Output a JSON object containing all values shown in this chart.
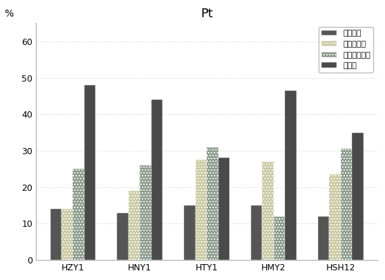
{
  "title": "Pt",
  "ylabel": "%",
  "categories": [
    "HZY1",
    "HNY1",
    "HTY1",
    "HMY2",
    "HSH12"
  ],
  "series": {
    "可交换相": [
      14,
      13,
      15,
      15,
      12
    ],
    "有机结合相": [
      14,
      19,
      27.5,
      27,
      23.5
    ],
    "硫化物结合相": [
      25,
      26,
      31,
      12,
      30.5
    ],
    "残渣相": [
      48,
      44,
      28,
      46.5,
      35
    ]
  },
  "colors": {
    "可交换相": "#555555",
    "有机结合相": "#c8c8a0",
    "硫化物结合相": "#8a9a8a",
    "残渣相": "#4a4a4a"
  },
  "hatches": {
    "可交换相": "",
    "有机结合相": "....",
    "硫化物结合相": "....",
    "残渣相": ""
  },
  "ylim": [
    0,
    65
  ],
  "yticks": [
    0,
    10,
    20,
    30,
    40,
    50,
    60
  ],
  "legend_order": [
    "可交换相",
    "有机结合相",
    "硫化物结合相",
    "残渣相"
  ],
  "background_color": "#ffffff",
  "plot_bg_color": "#ffffff",
  "grid_color": "#cccccc",
  "bar_width": 0.17,
  "title_fontsize": 13,
  "tick_fontsize": 9,
  "legend_fontsize": 8,
  "figsize": [
    5.57,
    4.05
  ],
  "dpi": 100
}
